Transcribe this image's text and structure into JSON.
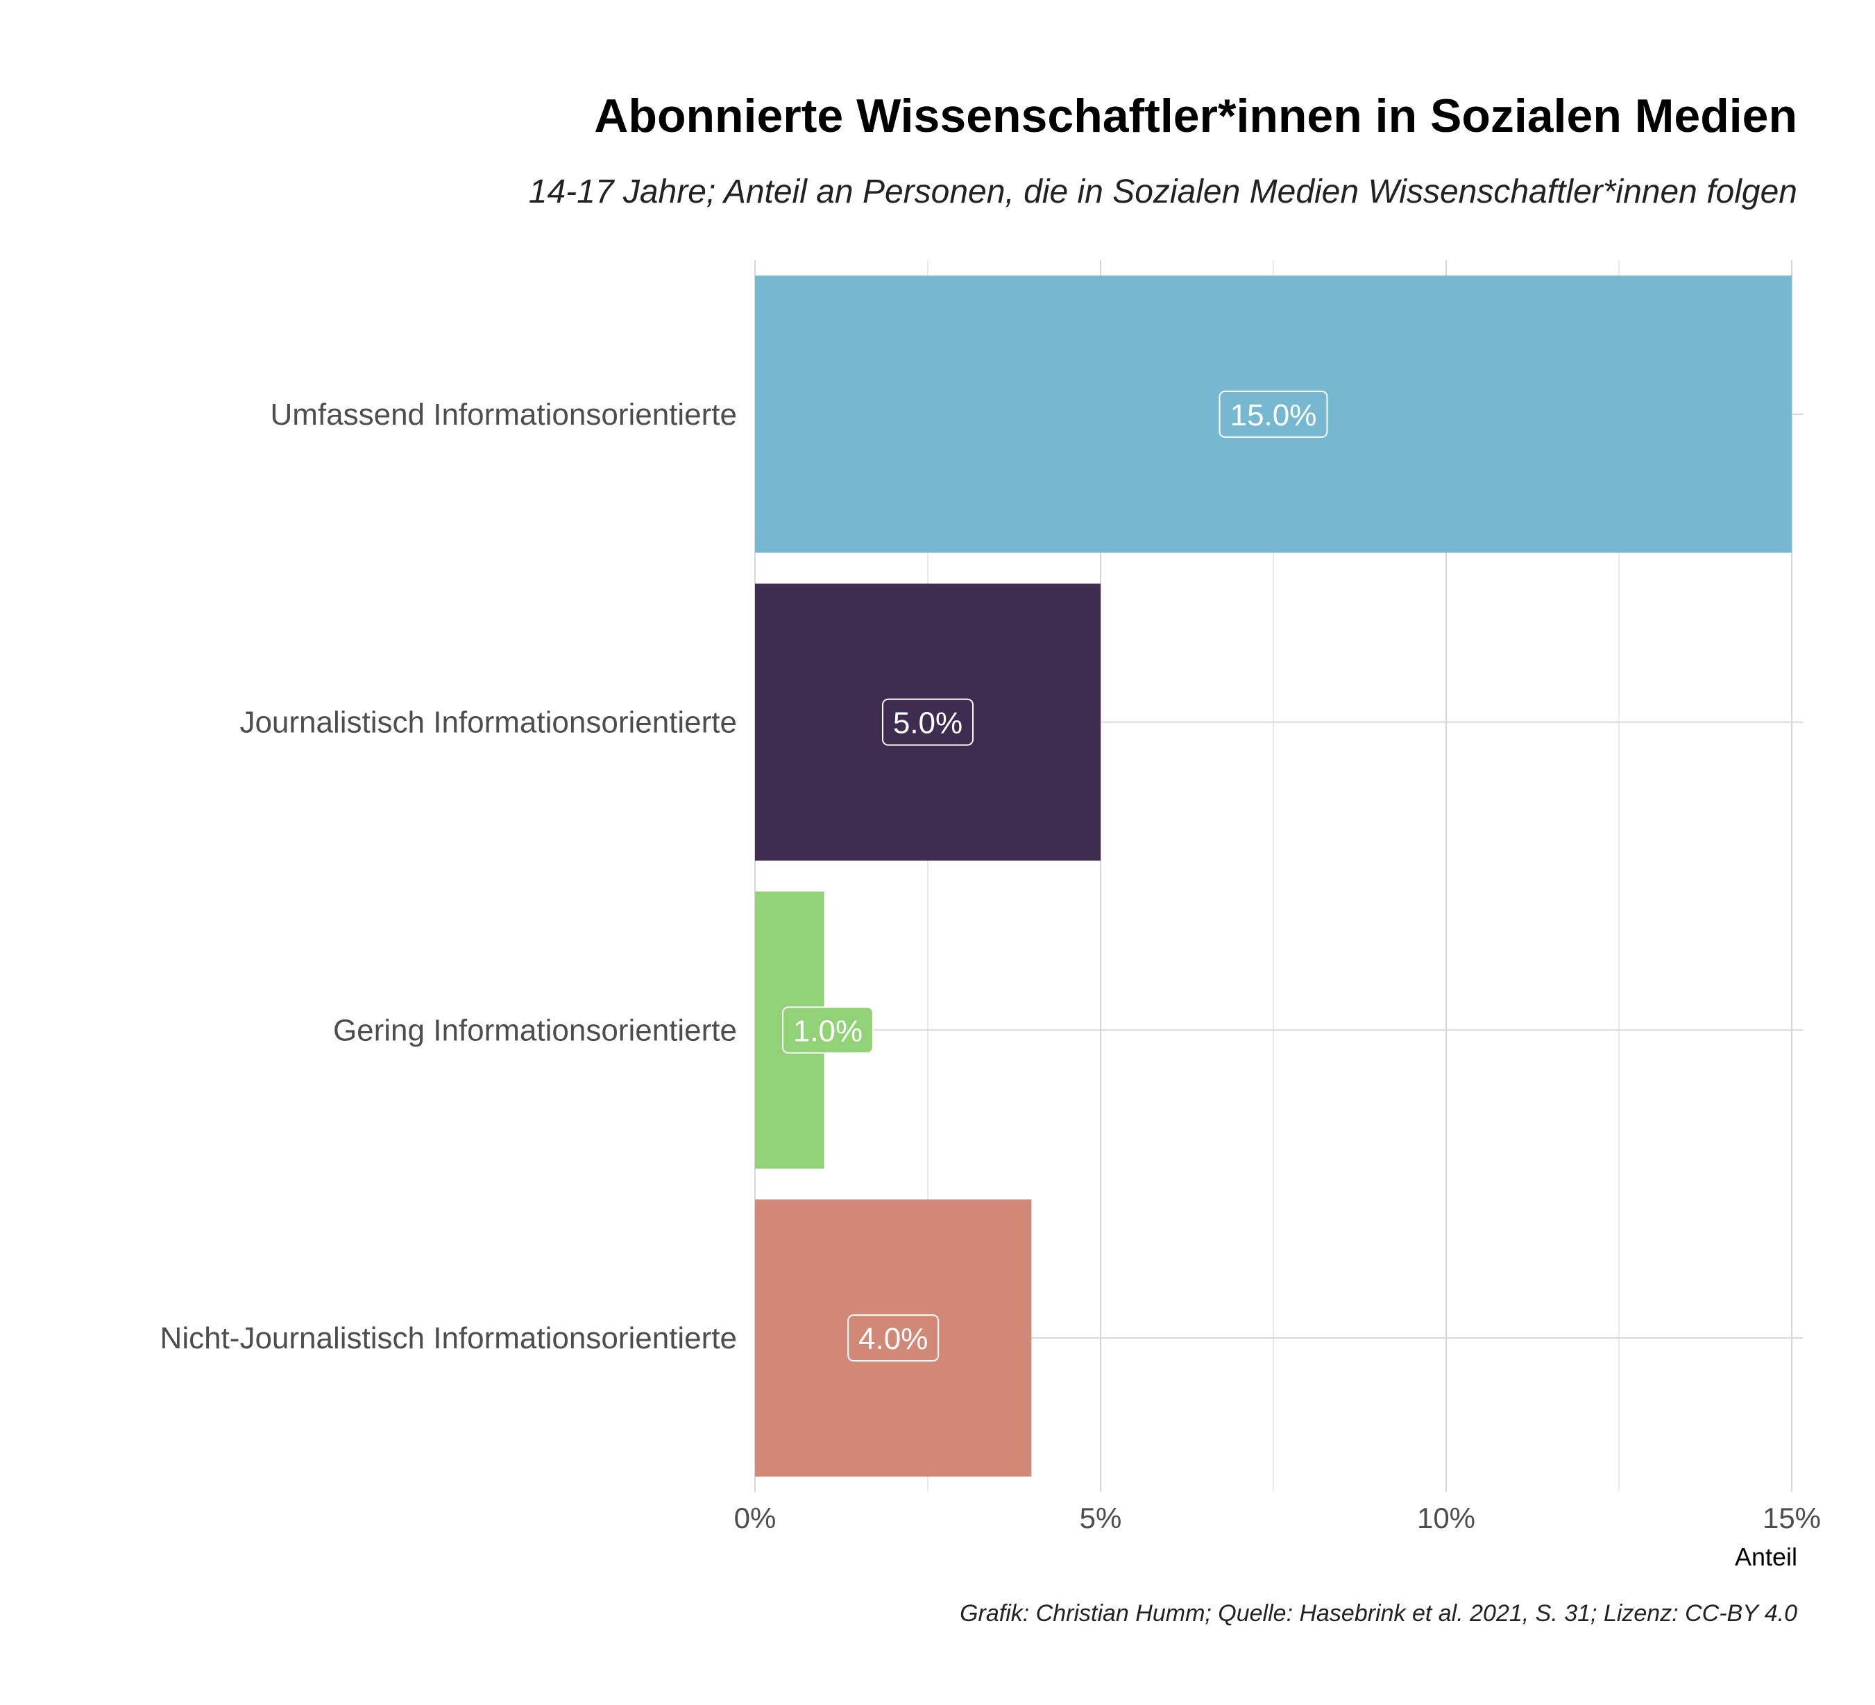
{
  "chart_data": {
    "type": "bar",
    "orientation": "horizontal",
    "title": "Abonnierte Wissenschaftler*innen in Sozialen Medien",
    "subtitle": "14-17 Jahre; Anteil an Personen, die in Sozialen Medien Wissenschaftler*innen folgen",
    "xlabel": "Anteil",
    "ylabel": "",
    "caption": "Grafik: Christian Humm; Quelle: Hasebrink et al. 2021, S. 31; Lizenz: CC-BY 4.0",
    "xlim": [
      0,
      15
    ],
    "x_ticks": [
      0,
      5,
      10,
      15
    ],
    "x_tick_labels": [
      "0%",
      "5%",
      "10%",
      "15%"
    ],
    "grid": true,
    "legend": "none",
    "categories": [
      "Umfassend Informationsorientierte",
      "Journalistisch Informationsorientierte",
      "Gering Informationsorientierte",
      "Nicht-Journalistisch Informationsorientierte"
    ],
    "values": [
      15.0,
      5.0,
      1.0,
      4.0
    ],
    "data_labels": [
      "15.0%",
      "5.0%",
      "1.0%",
      "4.0%"
    ],
    "colors": [
      "#76b7d1",
      "#3f2d51",
      "#90d275",
      "#d28876"
    ]
  }
}
